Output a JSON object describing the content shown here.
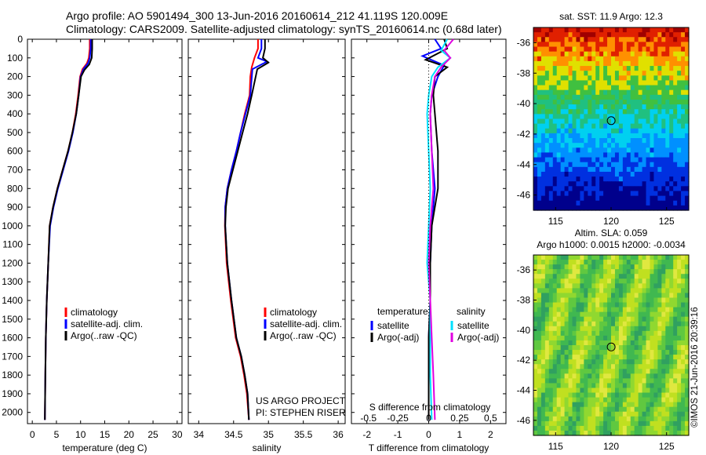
{
  "header": {
    "line1": "Argo profile: AO 5901494_300 13-Jun-2016 20160614_212 41.119S 120.009E",
    "line2": "Climatology: CARS2009. Satellite-adjusted climatology: synTS_20160614.nc (0.68d later)"
  },
  "footer_stamp": "©IMOS 21-Jun-2016 20:39:16",
  "colors": {
    "climatology": "#ff0000",
    "satellite": "#0000ff",
    "argo": "#000000",
    "satellite_salinity": "#00e0ff",
    "argo_salinity_adj": "#e000e0"
  },
  "chart_data": [
    {
      "type": "line",
      "name_key": "temperature-profile",
      "xlabel": "temperature (deg C)",
      "ylabel": "",
      "xlim": [
        -1,
        31
      ],
      "ylim": [
        2060,
        0
      ],
      "xticks": [
        0,
        5,
        10,
        15,
        20,
        25,
        30
      ],
      "yticks": [
        0,
        100,
        200,
        300,
        400,
        500,
        600,
        700,
        800,
        900,
        1000,
        1100,
        1200,
        1300,
        1400,
        1500,
        1600,
        1700,
        1800,
        1900,
        2000
      ],
      "grid": false,
      "legend": [
        "climatology",
        "satellite-adj. clim.",
        "Argo(..raw -QC)"
      ],
      "legend_placement": "center-left",
      "series": [
        {
          "name": "climatology",
          "color": "#ff0000",
          "x": [
            11.9,
            11.9,
            11.7,
            11.3,
            10.4,
            9.9,
            9.5,
            9.0,
            8.3,
            7.4,
            6.3,
            5.2,
            4.3,
            3.6,
            3.3,
            3.0,
            2.8,
            2.7,
            2.6
          ],
          "y": [
            0,
            50,
            100,
            130,
            160,
            200,
            300,
            400,
            500,
            600,
            700,
            800,
            900,
            1000,
            1200,
            1400,
            1600,
            1800,
            2040
          ]
        },
        {
          "name": "satellite-adj. clim.",
          "color": "#0000ff",
          "x": [
            12.1,
            12.1,
            11.9,
            11.5,
            10.6,
            10.0,
            9.6,
            9.1,
            8.4,
            7.5,
            6.4,
            5.3,
            4.4,
            3.7,
            3.3,
            3.0,
            2.8,
            2.7,
            2.6
          ],
          "y": [
            0,
            50,
            100,
            130,
            160,
            200,
            300,
            400,
            500,
            600,
            700,
            800,
            900,
            1000,
            1200,
            1400,
            1600,
            1800,
            2040
          ]
        },
        {
          "name": "Argo(..raw -QC)",
          "color": "#000000",
          "x": [
            12.4,
            12.4,
            12.3,
            11.8,
            10.8,
            10.1,
            9.6,
            9.1,
            8.3,
            7.4,
            6.3,
            5.2,
            4.3,
            3.6,
            3.3,
            3.0,
            2.8,
            2.7,
            2.6
          ],
          "y": [
            0,
            50,
            100,
            135,
            165,
            200,
            300,
            400,
            500,
            600,
            700,
            800,
            900,
            1000,
            1200,
            1400,
            1600,
            1800,
            2040
          ]
        }
      ]
    },
    {
      "type": "line",
      "name_key": "salinity-profile",
      "xlabel": "salinity",
      "ylabel": "",
      "xlim": [
        33.85,
        36.1
      ],
      "ylim": [
        2060,
        0
      ],
      "xticks": [
        34,
        34.5,
        35,
        35.5,
        36
      ],
      "grid": false,
      "legend": [
        "climatology",
        "satellite-adj. clim.",
        "Argo(..raw -QC)"
      ],
      "legend_placement": "center-right",
      "annotation": [
        "US ARGO PROJECT",
        "PI: STEPHEN RISER"
      ],
      "series": [
        {
          "name": "climatology",
          "color": "#ff0000",
          "x": [
            34.85,
            34.85,
            34.8,
            34.76,
            34.74,
            34.73,
            34.66,
            34.6,
            34.54,
            34.47,
            34.41,
            34.38,
            34.375,
            34.4,
            34.46,
            34.53,
            34.6,
            34.65,
            34.69,
            34.72
          ],
          "y": [
            0,
            50,
            100,
            150,
            200,
            300,
            400,
            500,
            600,
            700,
            800,
            900,
            1000,
            1200,
            1400,
            1600,
            1700,
            1800,
            1900,
            2040
          ]
        },
        {
          "name": "satellite-adj. clim.",
          "color": "#0000ff",
          "x": [
            34.9,
            34.9,
            34.85,
            34.98,
            34.77,
            34.74,
            34.67,
            34.6,
            34.54,
            34.47,
            34.41,
            34.38,
            34.38,
            34.41,
            34.47,
            34.54,
            34.61,
            34.66,
            34.7,
            34.72
          ],
          "y": [
            0,
            50,
            100,
            120,
            160,
            300,
            400,
            500,
            600,
            700,
            800,
            900,
            1000,
            1200,
            1400,
            1600,
            1700,
            1800,
            1900,
            2040
          ]
        },
        {
          "name": "Argo(..raw -QC)",
          "color": "#000000",
          "x": [
            34.95,
            34.95,
            34.92,
            35.0,
            34.84,
            34.76,
            34.7,
            34.63,
            34.56,
            34.49,
            34.42,
            34.39,
            34.38,
            34.41,
            34.47,
            34.54,
            34.61,
            34.66,
            34.7,
            34.72
          ],
          "y": [
            0,
            50,
            100,
            125,
            160,
            300,
            400,
            500,
            600,
            700,
            800,
            900,
            1000,
            1200,
            1400,
            1600,
            1700,
            1800,
            1900,
            2040
          ]
        }
      ]
    },
    {
      "type": "line",
      "name_key": "difference-profile",
      "xlabel": "T difference from climatology",
      "xlabel2": "S difference from climatology",
      "xlim": [
        -2.5,
        2.5
      ],
      "ylim": [
        2060,
        0
      ],
      "xticks": [
        -2,
        -1,
        0,
        1,
        2
      ],
      "xticks2_labels": [
        "-0.5",
        "-0.25",
        "0",
        "0.25",
        "0.5"
      ],
      "grid": false,
      "legend_titles": [
        "temperature",
        "salinity"
      ],
      "legend": [
        "satellite",
        "Argo(-adj)",
        "satellite",
        "Argo(-adj)"
      ],
      "series": [
        {
          "name": "satellite",
          "group": "temperature",
          "color": "#0000ff",
          "x": [
            0.2,
            0.4,
            -0.2,
            0.5,
            0.3,
            0.1,
            0.05,
            0.1,
            0.2,
            0.1,
            0.05,
            0.05,
            0.0,
            0.0,
            0.0
          ],
          "y": [
            0,
            50,
            90,
            140,
            200,
            300,
            400,
            600,
            800,
            1000,
            1200,
            1400,
            1600,
            1800,
            2040
          ]
        },
        {
          "name": "Argo(-adj)",
          "group": "temperature",
          "color": "#000000",
          "x": [
            0.5,
            0.6,
            -0.1,
            0.6,
            0.2,
            0.15,
            0.2,
            0.3,
            0.3,
            0.1,
            0.05,
            0.05,
            0.0,
            0.0,
            0.0
          ],
          "y": [
            0,
            50,
            110,
            150,
            200,
            300,
            400,
            600,
            800,
            1000,
            1200,
            1400,
            1600,
            1800,
            2040
          ]
        },
        {
          "name": "satellite",
          "group": "salinity",
          "color": "#00e0ff",
          "x": [
            0.6,
            0.4,
            0.7,
            0.3,
            0.1,
            0.0,
            -0.05,
            0.0,
            0.05,
            0.0,
            -0.05,
            0.05,
            0.05,
            0.05,
            0.1
          ],
          "y": [
            0,
            60,
            100,
            150,
            200,
            300,
            400,
            600,
            800,
            1000,
            1200,
            1400,
            1600,
            1800,
            2040
          ]
        },
        {
          "name": "Argo(-adj)",
          "group": "salinity",
          "color": "#e000e0",
          "x": [
            0.8,
            0.5,
            0.7,
            0.4,
            0.2,
            0.1,
            0.05,
            0.1,
            0.15,
            0.05,
            0.0,
            0.05,
            0.1,
            0.15,
            0.2
          ],
          "y": [
            0,
            60,
            100,
            150,
            200,
            300,
            400,
            600,
            800,
            1000,
            1200,
            1400,
            1600,
            1800,
            2040
          ]
        }
      ]
    },
    {
      "type": "heatmap",
      "name_key": "sst-map",
      "title": "sat. SST: 11.9 Argo: 12.3",
      "xlim": [
        113,
        127
      ],
      "ylim": [
        -47,
        -35
      ],
      "xticks": [
        115,
        120,
        125
      ],
      "yticks": [
        -36,
        -38,
        -40,
        -42,
        -44,
        -46
      ],
      "marker": {
        "lon": 120.009,
        "lat": -41.119
      }
    },
    {
      "type": "heatmap",
      "name_key": "sla-map",
      "title": "Altim. SLA: 0.059",
      "subtitle": "Argo h1000: 0.0015 h2000: -0.0034",
      "xlim": [
        113,
        127
      ],
      "ylim": [
        -47,
        -35
      ],
      "xticks": [
        115,
        120,
        125
      ],
      "yticks": [
        -36,
        -38,
        -40,
        -42,
        -44,
        -46
      ],
      "marker": {
        "lon": 120.009,
        "lat": -41.119
      }
    }
  ]
}
